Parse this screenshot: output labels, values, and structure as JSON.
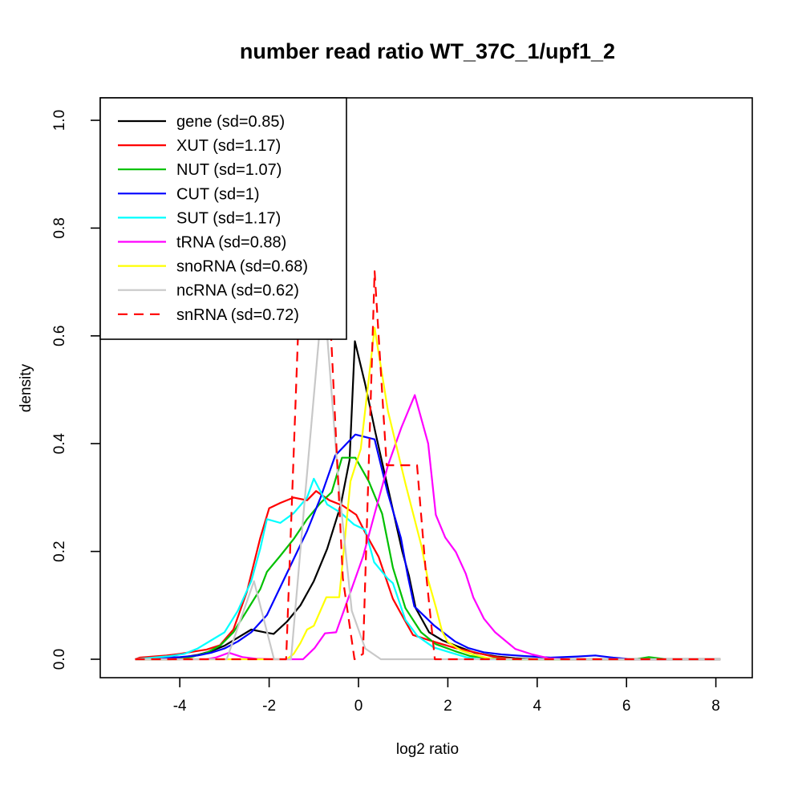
{
  "chart_data": {
    "type": "line",
    "title": "number read ratio WT_37C_1/upf1_2",
    "xlabel": "log2 ratio",
    "ylabel": "density",
    "xlim": [
      -5.8,
      8.8
    ],
    "ylim": [
      -0.03,
      1.05
    ],
    "xticks": [
      -4,
      -2,
      0,
      2,
      4,
      6,
      8
    ],
    "yticks": [
      "0.0",
      "0.2",
      "0.4",
      "0.6",
      "0.8",
      "1.0"
    ],
    "grid": false,
    "legend_position": "topleft",
    "line_width": 2.2,
    "series": [
      {
        "name": "gene",
        "label": "gene (sd=0.85)",
        "color": "#000000",
        "dashed": false,
        "points": [
          [
            -5,
            0
          ],
          [
            -4.2,
            0
          ],
          [
            -3.9,
            0.004
          ],
          [
            -3.6,
            0.008
          ],
          [
            -3.3,
            0.015
          ],
          [
            -3.0,
            0.025
          ],
          [
            -2.7,
            0.04
          ],
          [
            -2.4,
            0.055
          ],
          [
            -2.1,
            0.05
          ],
          [
            -1.9,
            0.047
          ],
          [
            -1.6,
            0.07
          ],
          [
            -1.3,
            0.1
          ],
          [
            -1.0,
            0.145
          ],
          [
            -0.7,
            0.205
          ],
          [
            -0.4,
            0.285
          ],
          [
            -0.2,
            0.37
          ],
          [
            -0.08,
            0.59
          ],
          [
            0.15,
            0.51
          ],
          [
            0.38,
            0.42
          ],
          [
            0.68,
            0.31
          ],
          [
            0.98,
            0.2
          ],
          [
            1.13,
            0.155
          ],
          [
            1.28,
            0.095
          ],
          [
            1.58,
            0.05
          ],
          [
            1.88,
            0.035
          ],
          [
            2.18,
            0.025
          ],
          [
            2.6,
            0.012
          ],
          [
            3.1,
            0.005
          ],
          [
            3.5,
            0.002
          ],
          [
            4.0,
            0
          ],
          [
            8.1,
            0
          ]
        ]
      },
      {
        "name": "XUT",
        "label": "XUT (sd=1.17)",
        "color": "#FF0000",
        "dashed": false,
        "points": [
          [
            -5,
            0
          ],
          [
            -4.9,
            0.003
          ],
          [
            -4.3,
            0.007
          ],
          [
            -4.0,
            0.01
          ],
          [
            -3.7,
            0.014
          ],
          [
            -3.4,
            0.018
          ],
          [
            -3.1,
            0.026
          ],
          [
            -2.8,
            0.055
          ],
          [
            -2.5,
            0.125
          ],
          [
            -2.2,
            0.225
          ],
          [
            -2.0,
            0.28
          ],
          [
            -1.75,
            0.29
          ],
          [
            -1.45,
            0.3
          ],
          [
            -1.15,
            0.295
          ],
          [
            -0.95,
            0.312
          ],
          [
            -0.65,
            0.295
          ],
          [
            -0.35,
            0.285
          ],
          [
            -0.05,
            0.268
          ],
          [
            0.15,
            0.235
          ],
          [
            0.45,
            0.19
          ],
          [
            0.77,
            0.112
          ],
          [
            0.95,
            0.085
          ],
          [
            1.22,
            0.045
          ],
          [
            1.67,
            0.033
          ],
          [
            2.16,
            0.021
          ],
          [
            2.6,
            0.013
          ],
          [
            3.0,
            0.005
          ],
          [
            3.3,
            0.002
          ],
          [
            3.6,
            0
          ],
          [
            8.1,
            0
          ]
        ]
      },
      {
        "name": "NUT",
        "label": "NUT (sd=1.07)",
        "color": "#00C000",
        "dashed": false,
        "points": [
          [
            -5,
            0
          ],
          [
            -4.0,
            0
          ],
          [
            -3.7,
            0.005
          ],
          [
            -3.4,
            0.012
          ],
          [
            -3.1,
            0.025
          ],
          [
            -2.8,
            0.05
          ],
          [
            -2.5,
            0.09
          ],
          [
            -2.2,
            0.13
          ],
          [
            -2.05,
            0.162
          ],
          [
            -1.75,
            0.192
          ],
          [
            -1.45,
            0.223
          ],
          [
            -1.15,
            0.26
          ],
          [
            -0.85,
            0.29
          ],
          [
            -0.6,
            0.31
          ],
          [
            -0.37,
            0.374
          ],
          [
            -0.07,
            0.374
          ],
          [
            0.23,
            0.33
          ],
          [
            0.53,
            0.27
          ],
          [
            0.77,
            0.17
          ],
          [
            1.05,
            0.095
          ],
          [
            1.4,
            0.05
          ],
          [
            1.73,
            0.028
          ],
          [
            2.16,
            0.015
          ],
          [
            2.5,
            0.006
          ],
          [
            2.9,
            0.002
          ],
          [
            3.3,
            0
          ],
          [
            6.2,
            0
          ],
          [
            6.5,
            0.004
          ],
          [
            6.9,
            0
          ],
          [
            8.1,
            0
          ]
        ]
      },
      {
        "name": "CUT",
        "label": "CUT (sd=1)",
        "color": "#0000FF",
        "dashed": false,
        "points": [
          [
            -5,
            0
          ],
          [
            -4.6,
            0.002
          ],
          [
            -4.0,
            0.004
          ],
          [
            -3.6,
            0.007
          ],
          [
            -3.3,
            0.012
          ],
          [
            -3.0,
            0.02
          ],
          [
            -2.7,
            0.033
          ],
          [
            -2.4,
            0.05
          ],
          [
            -2.05,
            0.082
          ],
          [
            -1.75,
            0.134
          ],
          [
            -1.45,
            0.186
          ],
          [
            -1.15,
            0.238
          ],
          [
            -0.85,
            0.3
          ],
          [
            -0.52,
            0.378
          ],
          [
            -0.07,
            0.417
          ],
          [
            0.36,
            0.408
          ],
          [
            0.65,
            0.31
          ],
          [
            0.95,
            0.225
          ],
          [
            1.1,
            0.156
          ],
          [
            1.25,
            0.098
          ],
          [
            1.7,
            0.062
          ],
          [
            2.16,
            0.033
          ],
          [
            2.45,
            0.021
          ],
          [
            2.8,
            0.013
          ],
          [
            3.2,
            0.009
          ],
          [
            3.7,
            0.006
          ],
          [
            4.3,
            0.003
          ],
          [
            4.9,
            0.005
          ],
          [
            5.3,
            0.007
          ],
          [
            5.7,
            0.003
          ],
          [
            6.1,
            0
          ],
          [
            8.1,
            0
          ]
        ]
      },
      {
        "name": "SUT",
        "label": "SUT (sd=1.17)",
        "color": "#00FFFF",
        "dashed": false,
        "points": [
          [
            -5,
            0
          ],
          [
            -4.6,
            0.003
          ],
          [
            -4.2,
            0.006
          ],
          [
            -3.9,
            0.01
          ],
          [
            -3.6,
            0.02
          ],
          [
            -3.3,
            0.035
          ],
          [
            -3.0,
            0.05
          ],
          [
            -2.7,
            0.09
          ],
          [
            -2.4,
            0.145
          ],
          [
            -2.2,
            0.205
          ],
          [
            -2.05,
            0.26
          ],
          [
            -1.75,
            0.253
          ],
          [
            -1.45,
            0.271
          ],
          [
            -1.15,
            0.3
          ],
          [
            -1.0,
            0.335
          ],
          [
            -0.7,
            0.287
          ],
          [
            -0.4,
            0.272
          ],
          [
            -0.1,
            0.25
          ],
          [
            0.15,
            0.24
          ],
          [
            0.35,
            0.18
          ],
          [
            0.65,
            0.15
          ],
          [
            0.77,
            0.141
          ],
          [
            1.05,
            0.073
          ],
          [
            1.32,
            0.043
          ],
          [
            1.68,
            0.022
          ],
          [
            2.04,
            0.013
          ],
          [
            2.4,
            0.004
          ],
          [
            2.7,
            0
          ],
          [
            8.1,
            0
          ]
        ]
      },
      {
        "name": "tRNA",
        "label": "tRNA (sd=0.88)",
        "color": "#FF00FF",
        "dashed": false,
        "points": [
          [
            -5,
            0
          ],
          [
            -3.4,
            0
          ],
          [
            -3.2,
            0.003
          ],
          [
            -2.9,
            0.012
          ],
          [
            -2.6,
            0.004
          ],
          [
            -2.3,
            0.001
          ],
          [
            -1.9,
            0
          ],
          [
            -1.24,
            0
          ],
          [
            -0.98,
            0.021
          ],
          [
            -0.75,
            0.048
          ],
          [
            -0.5,
            0.05
          ],
          [
            -0.2,
            0.12
          ],
          [
            0.1,
            0.19
          ],
          [
            0.36,
            0.27
          ],
          [
            0.66,
            0.36
          ],
          [
            0.96,
            0.43
          ],
          [
            1.26,
            0.49
          ],
          [
            1.56,
            0.4
          ],
          [
            1.73,
            0.268
          ],
          [
            1.94,
            0.226
          ],
          [
            2.18,
            0.199
          ],
          [
            2.4,
            0.159
          ],
          [
            2.57,
            0.115
          ],
          [
            2.81,
            0.075
          ],
          [
            3.06,
            0.05
          ],
          [
            3.51,
            0.019
          ],
          [
            3.89,
            0.009
          ],
          [
            4.25,
            0.002
          ],
          [
            4.6,
            0
          ],
          [
            8.1,
            0
          ]
        ]
      },
      {
        "name": "snoRNA",
        "label": "snoRNA (sd=0.68)",
        "color": "#FFFF00",
        "dashed": false,
        "points": [
          [
            -5,
            0
          ],
          [
            -1.6,
            0
          ],
          [
            -1.45,
            0.01
          ],
          [
            -1.3,
            0.03
          ],
          [
            -1.15,
            0.055
          ],
          [
            -1.0,
            0.062
          ],
          [
            -0.72,
            0.115
          ],
          [
            -0.43,
            0.115
          ],
          [
            -0.18,
            0.33
          ],
          [
            0.05,
            0.39
          ],
          [
            0.36,
            0.615
          ],
          [
            0.66,
            0.46
          ],
          [
            0.9,
            0.378
          ],
          [
            1.05,
            0.326
          ],
          [
            1.23,
            0.268
          ],
          [
            1.41,
            0.21
          ],
          [
            1.55,
            0.15
          ],
          [
            1.73,
            0.097
          ],
          [
            1.87,
            0.052
          ],
          [
            2.0,
            0.032
          ],
          [
            2.3,
            0.016
          ],
          [
            2.6,
            0.008
          ],
          [
            2.9,
            0.002
          ],
          [
            3.1,
            0
          ],
          [
            8.1,
            0
          ]
        ]
      },
      {
        "name": "ncRNA",
        "label": "ncRNA (sd=0.62)",
        "color": "#C8C8C8",
        "dashed": false,
        "points": [
          [
            -5,
            0
          ],
          [
            -2.95,
            0
          ],
          [
            -2.34,
            0.145
          ],
          [
            -1.89,
            0
          ],
          [
            -1.51,
            0
          ],
          [
            -1.2,
            0.3
          ],
          [
            -0.85,
            0.63
          ],
          [
            -0.7,
            0.6
          ],
          [
            -0.45,
            0.33
          ],
          [
            -0.15,
            0.09
          ],
          [
            0.15,
            0.02
          ],
          [
            0.5,
            0
          ],
          [
            8.1,
            0
          ]
        ]
      },
      {
        "name": "snRNA",
        "label": "snRNA (sd=0.72)",
        "color": "#FF0000",
        "dashed": true,
        "points": [
          [
            -5,
            0
          ],
          [
            -1.62,
            0
          ],
          [
            -1.35,
            0.61
          ],
          [
            -0.62,
            0.61
          ],
          [
            -0.35,
            0.15
          ],
          [
            -0.09,
            0
          ],
          [
            0.1,
            0.01
          ],
          [
            0.36,
            0.72
          ],
          [
            0.63,
            0.36
          ],
          [
            1.31,
            0.36
          ],
          [
            1.5,
            0.17
          ],
          [
            1.71,
            0
          ],
          [
            8.1,
            0
          ]
        ]
      }
    ]
  }
}
